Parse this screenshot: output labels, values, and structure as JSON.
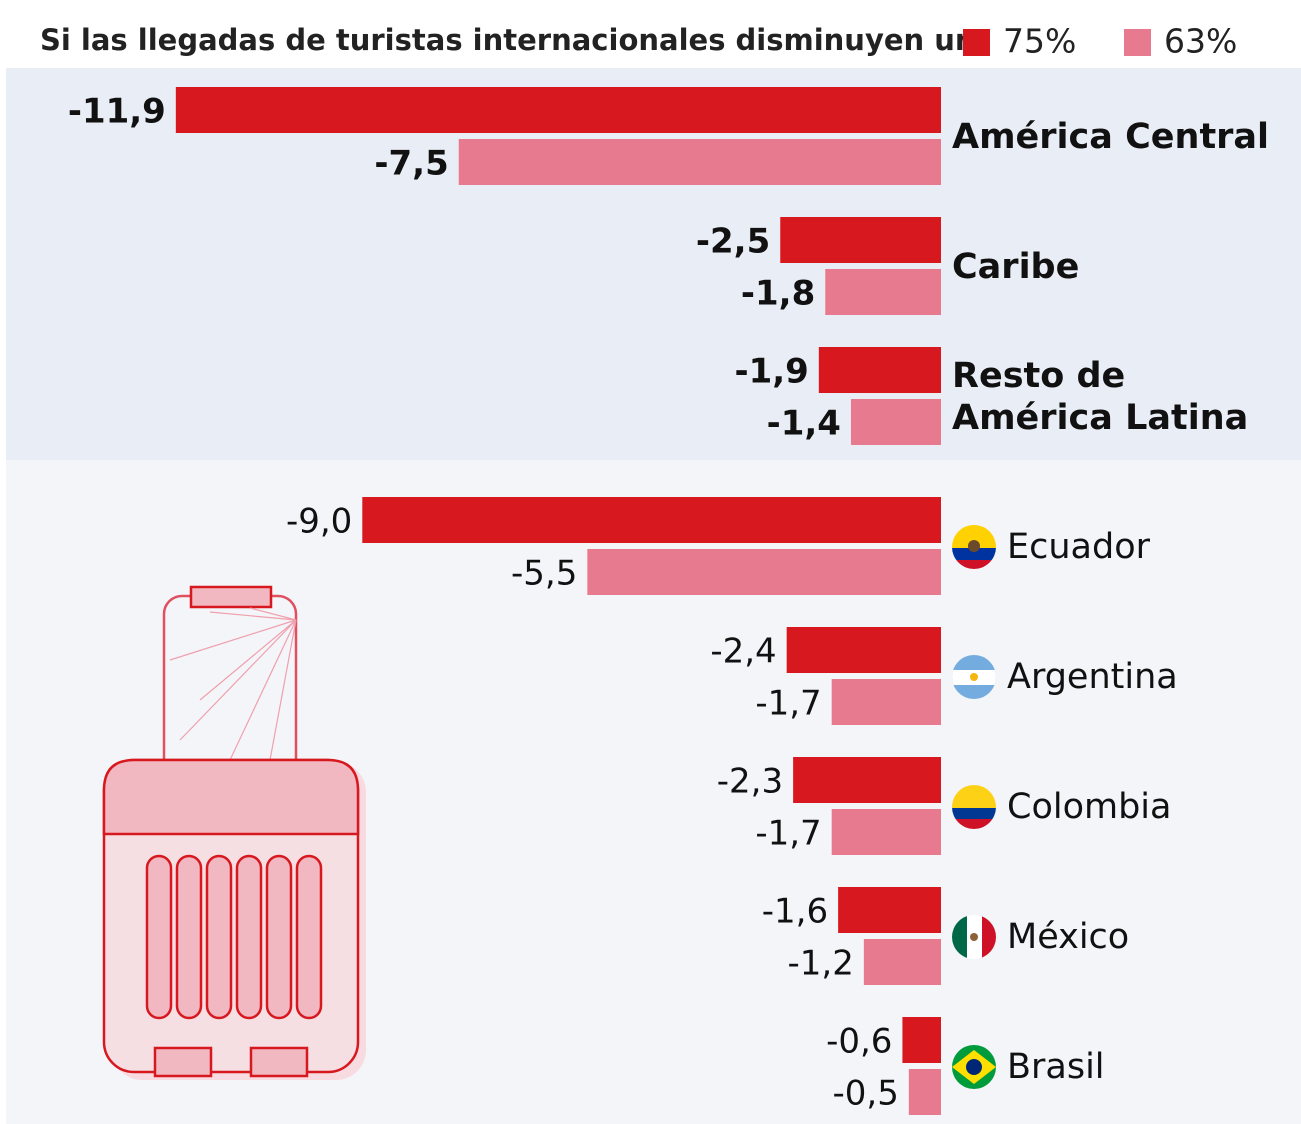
{
  "chart_data": [
    {
      "type": "bar",
      "title": "Si las llegadas de turistas internacionales disminuyen un:",
      "categories": [
        "América Central",
        "Caribe",
        "Resto de\nAmérica Latina"
      ],
      "series": [
        {
          "name": "75%",
          "color": "#d7191f",
          "values": [
            -11.9,
            -2.5,
            -1.9
          ],
          "value_labels": [
            "-11,9",
            "-2,5",
            "-1,9"
          ]
        },
        {
          "name": "63%",
          "color": "#e87a90",
          "values": [
            -7.5,
            -1.8,
            -1.4
          ],
          "value_labels": [
            "-7,5",
            "-1,8",
            "-1,4"
          ]
        }
      ]
    },
    {
      "type": "bar",
      "categories": [
        "Ecuador",
        "Argentina",
        "Colombia",
        "México",
        "Brasil"
      ],
      "series": [
        {
          "color": "#d7191f",
          "values": [
            -9.0,
            -2.4,
            -2.3,
            -1.6,
            -0.6
          ],
          "value_labels": [
            "-9,0",
            "-2,4",
            "-2,3",
            "-1,6",
            "-0,6"
          ]
        },
        {
          "color": "#e87a90",
          "values": [
            -5.5,
            -1.7,
            -1.7,
            -1.2,
            -0.5
          ],
          "value_labels": [
            "-5,5",
            "-1,7",
            "-1,7",
            "-1,2",
            "-0,5"
          ]
        }
      ]
    }
  ]
}
